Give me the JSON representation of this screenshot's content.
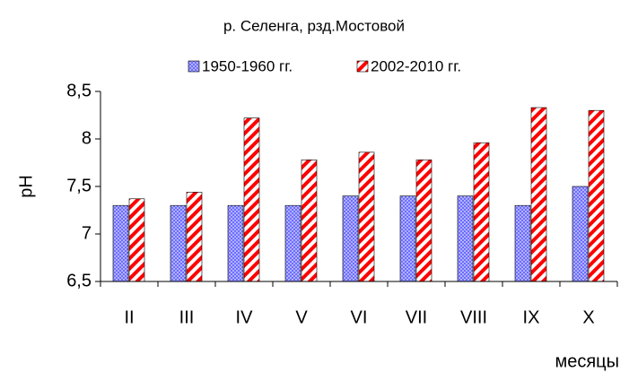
{
  "chart_data": {
    "type": "bar",
    "title": "р. Селенга, рзд.Мостовой",
    "y_label": "pH",
    "x_label": "месяцы",
    "categories": [
      "II",
      "III",
      "IV",
      "V",
      "VI",
      "VII",
      "VIII",
      "IX",
      "X"
    ],
    "series": [
      {
        "name": "1950-1960 гг.",
        "color": "#6666ff",
        "values": [
          7.3,
          7.3,
          7.3,
          7.3,
          7.4,
          7.4,
          7.4,
          7.3,
          7.5
        ]
      },
      {
        "name": "2002-2010 гг.",
        "color": "#ff0000",
        "values": [
          7.37,
          7.44,
          8.22,
          7.78,
          7.86,
          7.78,
          7.96,
          8.33,
          8.3
        ]
      }
    ],
    "ylim": [
      6.5,
      8.5
    ],
    "yticks": [
      {
        "value": 6.5,
        "label": "6,5"
      },
      7,
      {
        "value": 7.5,
        "label": "7,5"
      },
      8,
      {
        "value": 8.5,
        "label": "8,5"
      }
    ],
    "legend": "top"
  }
}
